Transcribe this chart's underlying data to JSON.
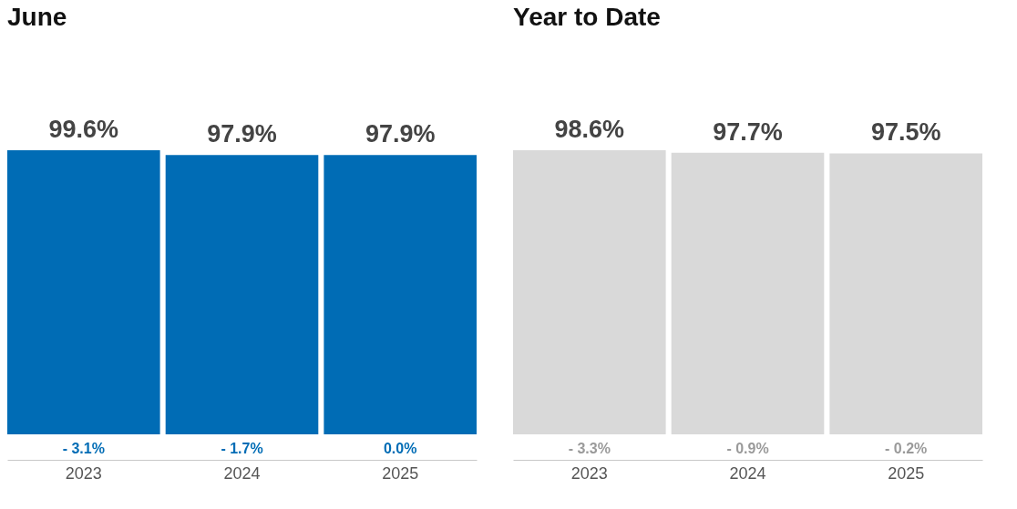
{
  "chart_data": [
    {
      "type": "bar",
      "title": "June",
      "categories": [
        "2023",
        "2024",
        "2025"
      ],
      "values": [
        99.6,
        97.9,
        97.9
      ],
      "value_labels": [
        "99.6%",
        "97.9%",
        "97.9%"
      ],
      "color": "#006cb5",
      "annotations": [
        "- 3.1%",
        "- 1.7%",
        "0.0%"
      ]
    },
    {
      "type": "bar",
      "title": "Year to Date",
      "categories": [
        "2023",
        "2024",
        "2025"
      ],
      "values": [
        98.6,
        97.7,
        97.5
      ],
      "value_labels": [
        "98.6%",
        "97.7%",
        "97.5%"
      ],
      "color": "#d9d9d9",
      "annotations": [
        "- 3.3%",
        "- 0.9%",
        "- 0.2%"
      ]
    }
  ]
}
